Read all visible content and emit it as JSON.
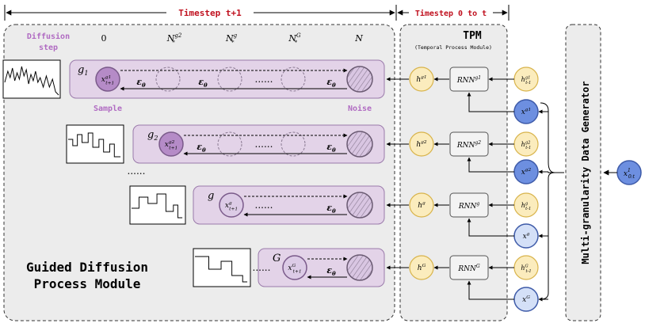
{
  "header": {
    "timestep_future": "Timestep t+1",
    "timestep_past": "Timestep 0 to t"
  },
  "gdpm": {
    "diffusion_step_label": "Diffusion step",
    "step_ticks": [
      "0",
      "N*^{g2}",
      "N*^g",
      "N*^G",
      "N"
    ],
    "sample_label": "Sample",
    "noise_label": "Noise",
    "title_line1": "Guided Diffusion",
    "title_line2": "Process Module",
    "dots": "......",
    "vdots": "......",
    "eps_label": "εθ",
    "rows": [
      {
        "group": "g1",
        "sample": "x_{t+1}^{g1}"
      },
      {
        "group": "g2",
        "sample": "x_{t+1}^{g2}"
      },
      {
        "group": "g",
        "sample": "x_{t+1}^{g}"
      },
      {
        "group": "G",
        "sample": "x_{t+1}^{G}"
      }
    ]
  },
  "tpm": {
    "title": "TPM",
    "subtitle": "(Temporal Process Module)",
    "rows": [
      {
        "hidden": "h_t^{g1}",
        "rnn": "RNN^{g1}",
        "prev": "h_{t-1}^{g1}",
        "input": "x_t^{g1}"
      },
      {
        "hidden": "h_t^{g2}",
        "rnn": "RNN^{g2}",
        "prev": "h_{t-1}^{g2}",
        "input": "x_t^{g2}"
      },
      {
        "hidden": "h_t^{g}",
        "rnn": "RNN^{g}",
        "prev": "h_{t-1}^{g}",
        "input": "x_t^{g}"
      },
      {
        "hidden": "h_t^{G}",
        "rnn": "RNN^{G}",
        "prev": "h_{t-1}^{G}",
        "input": "x_t^{G}"
      }
    ]
  },
  "generator": {
    "title": "Multi-granularity Data Generator",
    "source": "x_{0:t}^{1}"
  },
  "colors": {
    "purple_band": "#e3d3e8",
    "purple_node": "#b58bc7",
    "yellow_node": "#fbecbd",
    "blue_dark": "#6d8fe0",
    "blue_light": "#d4e0f7",
    "red_text": "#c0111f"
  }
}
